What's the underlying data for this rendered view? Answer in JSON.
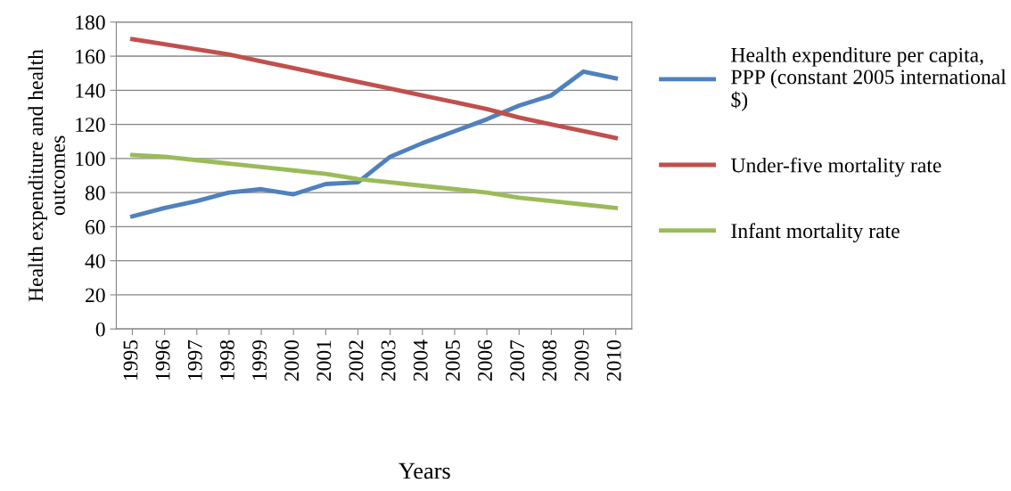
{
  "chart_data": {
    "type": "line",
    "xlabel": "Years",
    "ylabel": "Health expenditure and health\noutcomes",
    "categories": [
      "1995",
      "1996",
      "1997",
      "1998",
      "1999",
      "2000",
      "2001",
      "2002",
      "2003",
      "2004",
      "2005",
      "2006",
      "2007",
      "2008",
      "2009",
      "2010"
    ],
    "series": [
      {
        "name": "Health expenditure per capita,\nPPP (constant 2005 international\n$)",
        "color": "#4f81bd",
        "values": [
          66,
          71,
          75,
          80,
          82,
          79,
          85,
          86,
          101,
          109,
          116,
          123,
          131,
          137,
          151,
          147
        ]
      },
      {
        "name": "Under-five mortality rate",
        "color": "#c0504d",
        "values": [
          170,
          167,
          164,
          161,
          157,
          153,
          149,
          145,
          141,
          137,
          133,
          129,
          124,
          120,
          116,
          112
        ]
      },
      {
        "name": "Infant mortality rate",
        "color": "#9bbb59",
        "values": [
          102,
          101,
          99,
          97,
          95,
          93,
          91,
          88,
          86,
          84,
          82,
          80,
          77,
          75,
          73,
          71
        ]
      }
    ],
    "ylim": [
      0,
      180
    ],
    "yticks": [
      0,
      20,
      40,
      60,
      80,
      100,
      120,
      140,
      160,
      180
    ],
    "grid": "y",
    "legend": "right",
    "marker": "none",
    "line_style": "solid"
  }
}
